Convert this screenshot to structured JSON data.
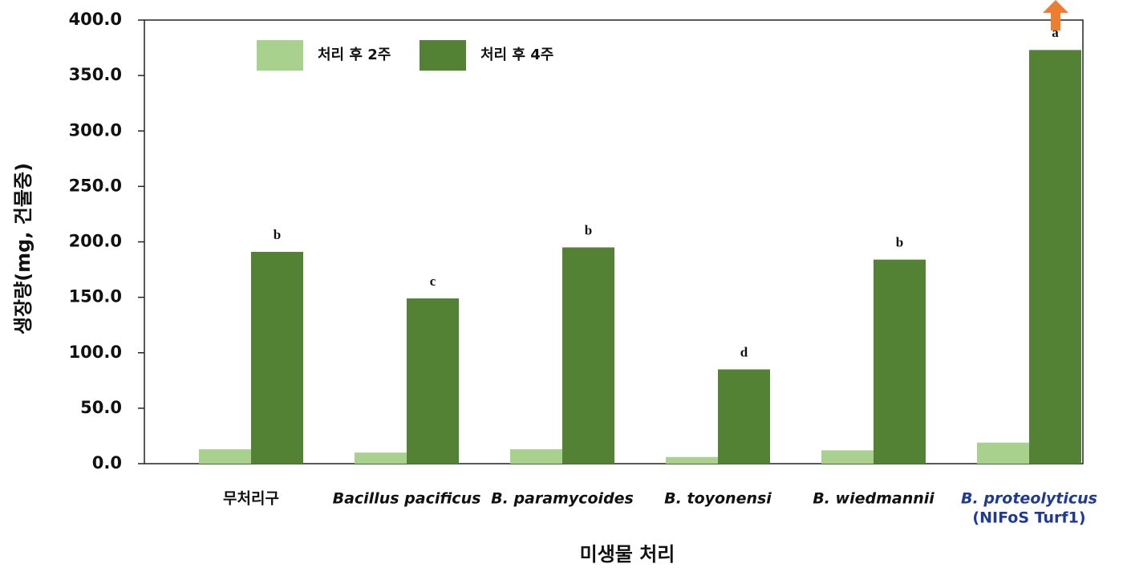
{
  "chart_data": {
    "type": "bar",
    "x_label": "미생물 처리",
    "y_label": "생장량(mg, 건물중)",
    "categories": [
      "무처리구",
      "Bacillus pacificus",
      "B. paramycoides",
      "B. toyonensi",
      "B. wiedmannii",
      [
        "B. proteolyticus",
        "(NIFoS Turf1)"
      ]
    ],
    "series": [
      {
        "name": "처리 후 2주",
        "color": "#a9d18e",
        "values": [
          13,
          10,
          13,
          6,
          12,
          19
        ]
      },
      {
        "name": "처리 후 4주",
        "color": "#548235",
        "values": [
          191,
          149,
          195,
          85,
          184,
          373
        ],
        "letters": [
          "b",
          "c",
          "b",
          "d",
          "b",
          "a"
        ]
      }
    ],
    "ylim": [
      0,
      400
    ],
    "yticks": [
      {
        "value": 0,
        "label": "0.0"
      },
      {
        "value": 50,
        "label": "50.0"
      },
      {
        "value": 100,
        "label": "100.0"
      },
      {
        "value": 150,
        "label": "150.0"
      },
      {
        "value": 200,
        "label": "200.0"
      },
      {
        "value": 250,
        "label": "250.0"
      },
      {
        "value": 300,
        "label": "300.0"
      },
      {
        "value": 350,
        "label": "350.0"
      },
      {
        "value": 400,
        "label": "400.0"
      }
    ],
    "grid": false,
    "legend": "top-left"
  }
}
